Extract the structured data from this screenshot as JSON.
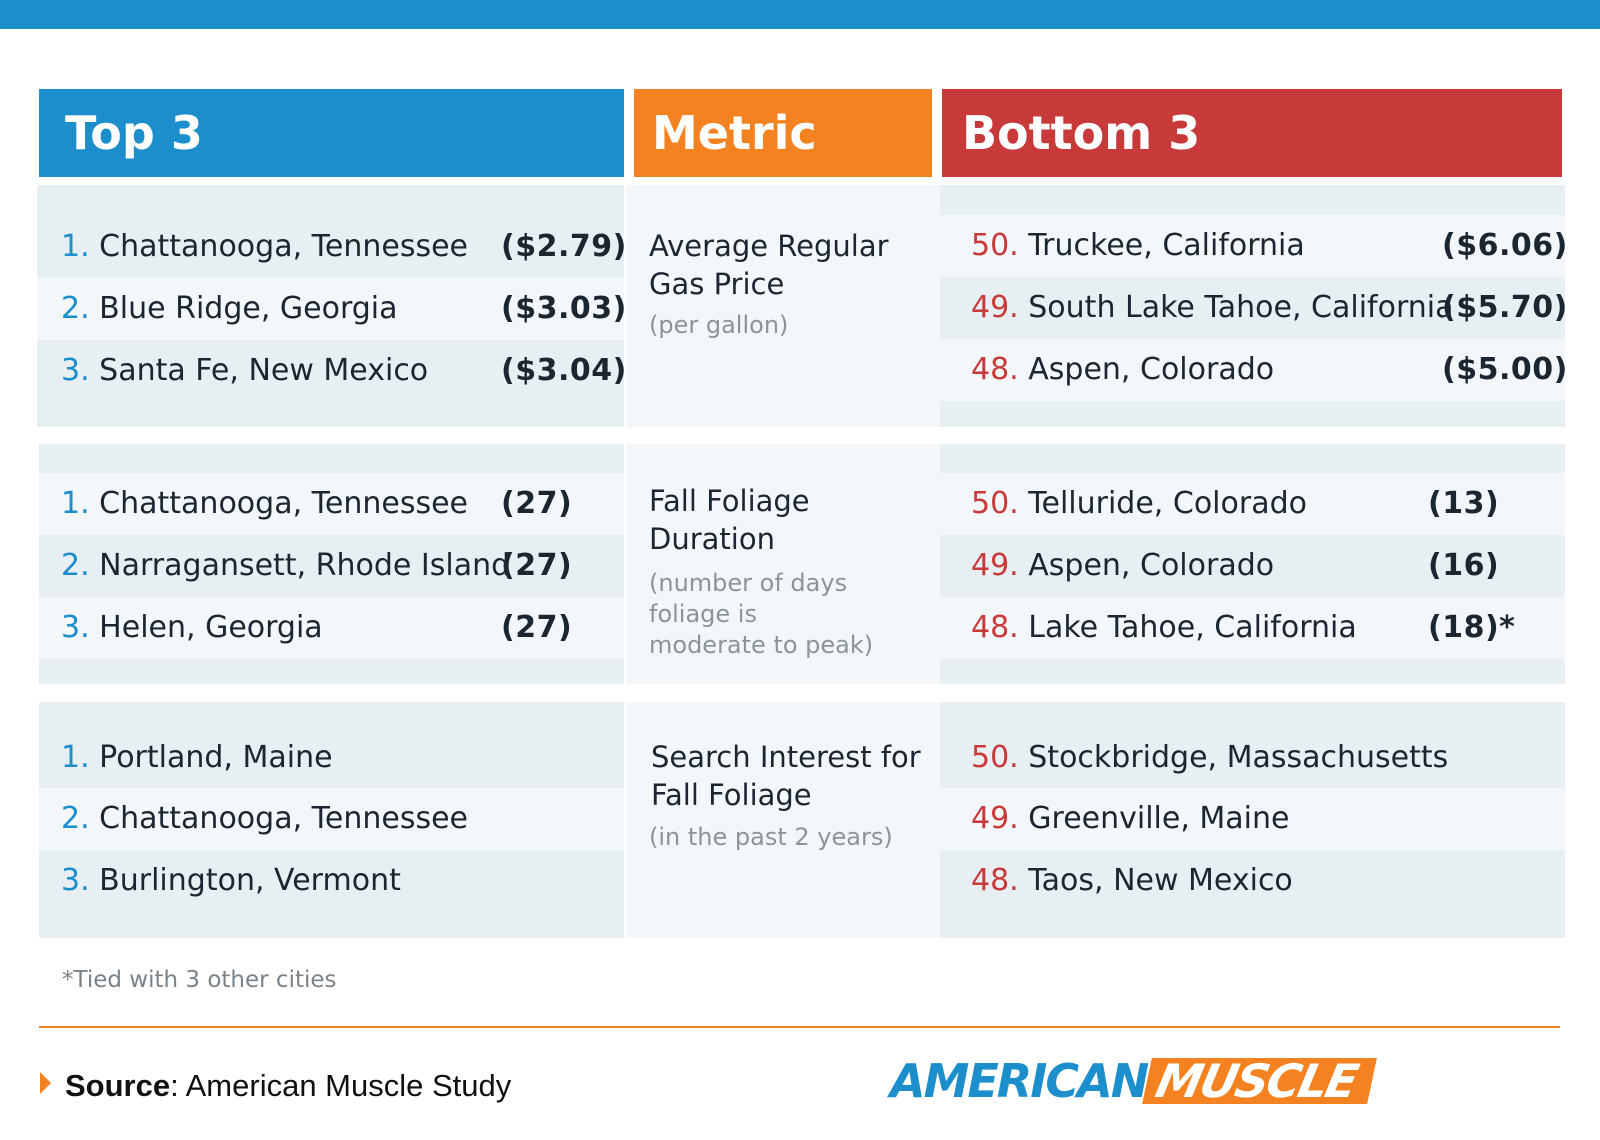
{
  "headers": {
    "top": "Top 3",
    "metric": "Metric",
    "bottom": "Bottom 3"
  },
  "sections": [
    {
      "top": [
        {
          "rank": "1.",
          "city": "Chattanooga, Tennessee",
          "value": "($2.79)"
        },
        {
          "rank": "2.",
          "city": "Blue Ridge, Georgia",
          "value": "($3.03)"
        },
        {
          "rank": "3.",
          "city": "Santa Fe, New Mexico",
          "value": "($3.04)"
        }
      ],
      "metric_title": "Average Regular Gas Price",
      "metric_sub": "(per gallon)",
      "bottom": [
        {
          "rank": "50.",
          "city": "Truckee, California",
          "value": "($6.06)"
        },
        {
          "rank": "49.",
          "city": "South Lake Tahoe, California",
          "value": "($5.70)"
        },
        {
          "rank": "48.",
          "city": "Aspen, Colorado",
          "value": "($5.00)"
        }
      ]
    },
    {
      "top": [
        {
          "rank": "1.",
          "city": "Chattanooga, Tennessee",
          "value": "(27)"
        },
        {
          "rank": "2.",
          "city": "Narragansett, Rhode Island",
          "value": "(27)"
        },
        {
          "rank": "3.",
          "city": "Helen, Georgia",
          "value": "(27)"
        }
      ],
      "metric_title": "Fall Foliage Duration",
      "metric_sub": "(number of days foliage is moderate to peak)",
      "bottom": [
        {
          "rank": "50.",
          "city": "Telluride, Colorado",
          "value": "(13)"
        },
        {
          "rank": "49.",
          "city": "Aspen, Colorado",
          "value": "(16)"
        },
        {
          "rank": "48.",
          "city": "Lake Tahoe, California",
          "value": "(18)*"
        }
      ]
    },
    {
      "top": [
        {
          "rank": "1.",
          "city": "Portland, Maine",
          "value": ""
        },
        {
          "rank": "2.",
          "city": "Chattanooga, Tennessee",
          "value": ""
        },
        {
          "rank": "3.",
          "city": "Burlington, Vermont",
          "value": ""
        }
      ],
      "metric_title": "Search Interest for Fall Foliage",
      "metric_sub": "(in the past 2 years)",
      "bottom": [
        {
          "rank": "50.",
          "city": "Stockbridge, Massachusetts",
          "value": ""
        },
        {
          "rank": "49.",
          "city": "Greenville, Maine",
          "value": ""
        },
        {
          "rank": "48.",
          "city": "Taos, New Mexico",
          "value": ""
        }
      ]
    }
  ],
  "footnote": "*Tied with 3 other cities",
  "source": {
    "label": "Source",
    "text": ": American Muscle Study"
  },
  "logo": {
    "part1": "AMERICAN",
    "part2": "MUSCLE"
  },
  "colors": {
    "blue": "#1b8ecb",
    "orange": "#f58220",
    "red": "#c8393a"
  }
}
